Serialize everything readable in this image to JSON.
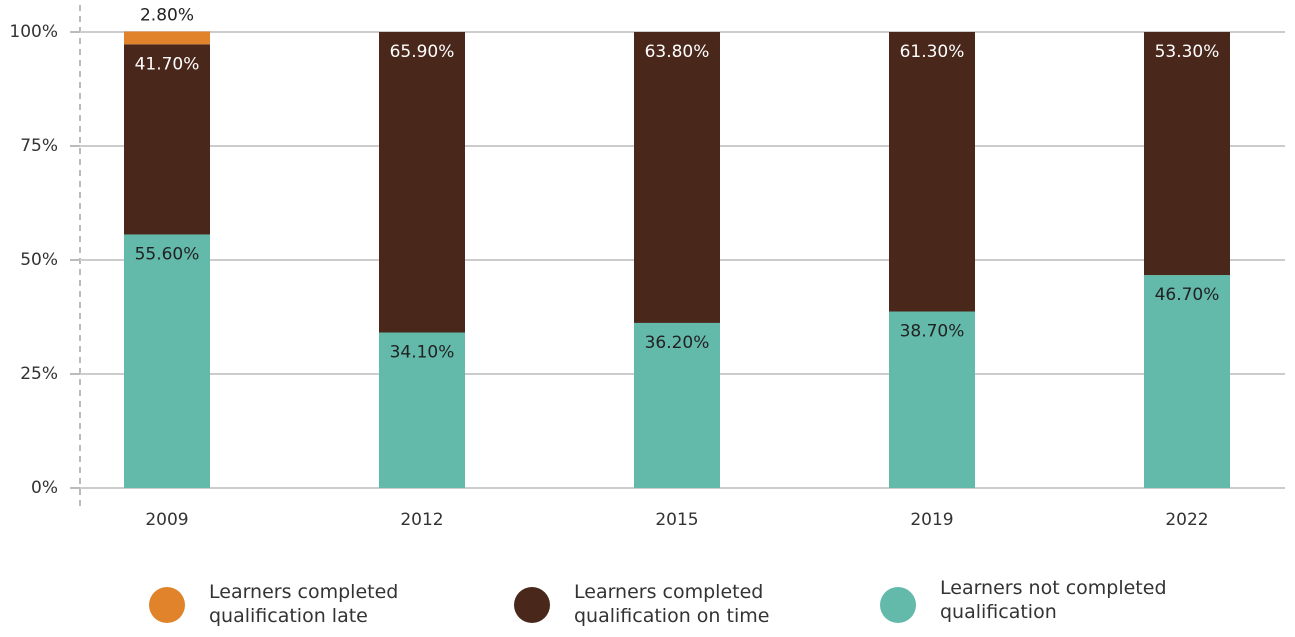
{
  "chart_data": {
    "type": "stacked_bar",
    "categories": [
      "2009",
      "2012",
      "2015",
      "2019",
      "2022"
    ],
    "series": [
      {
        "name": "Learners completed qualification late",
        "color": "#e0832a",
        "values": [
          2.8,
          null,
          null,
          null,
          null
        ],
        "value_labels": [
          "2.80%",
          null,
          null,
          null,
          null
        ]
      },
      {
        "name": "Learners completed qualification on time",
        "color": "#4a271b",
        "values": [
          41.7,
          65.9,
          63.8,
          61.3,
          53.3
        ],
        "value_labels": [
          "41.70%",
          "65.90%",
          "63.80%",
          "61.30%",
          "53.30%"
        ]
      },
      {
        "name": "Learners not completed qualification",
        "color": "#63baaa",
        "values": [
          55.6,
          34.1,
          36.2,
          38.7,
          46.7
        ],
        "value_labels": [
          "55.60%",
          "34.10%",
          "36.20%",
          "38.70%",
          "46.70%"
        ]
      }
    ],
    "ylim": [
      0,
      100
    ],
    "yticks": [
      {
        "value": 0,
        "label": "0%"
      },
      {
        "value": 25,
        "label": "25%"
      },
      {
        "value": 50,
        "label": "50%"
      },
      {
        "value": 75,
        "label": "75%"
      },
      {
        "value": 100,
        "label": "100%"
      }
    ],
    "grid": true,
    "legend": "bottom"
  }
}
